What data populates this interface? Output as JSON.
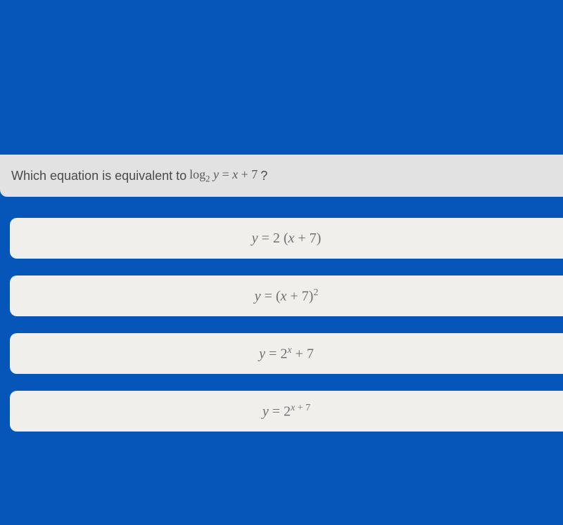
{
  "background_color": "#0556b8",
  "question_bar": {
    "bg_color": "#e1e2e1",
    "text_color": "#5a5a5a",
    "prefix": "Which equation is equivalent to ",
    "math_html": "log<span class='sub'>2</span> <span class='math'>y</span> = <span class='math'>x</span> + 7",
    "suffix": "?"
  },
  "answers": {
    "bg_color": "#f0efec",
    "text_color": "#707070",
    "items": [
      {
        "html": "<span class='math'>y</span> = 2 (<span class='math'>x</span> + 7)"
      },
      {
        "html": "<span class='math'>y</span> = (<span class='math'>x</span> + 7)<span class='sup'>2</span>"
      },
      {
        "html": "<span class='math'>y</span> = 2<span class='sup math'>x</span> + 7"
      },
      {
        "html": "<span class='math'>y</span> = 2<span class='sup'><span class='math'>x</span> + 7</span>"
      }
    ]
  }
}
